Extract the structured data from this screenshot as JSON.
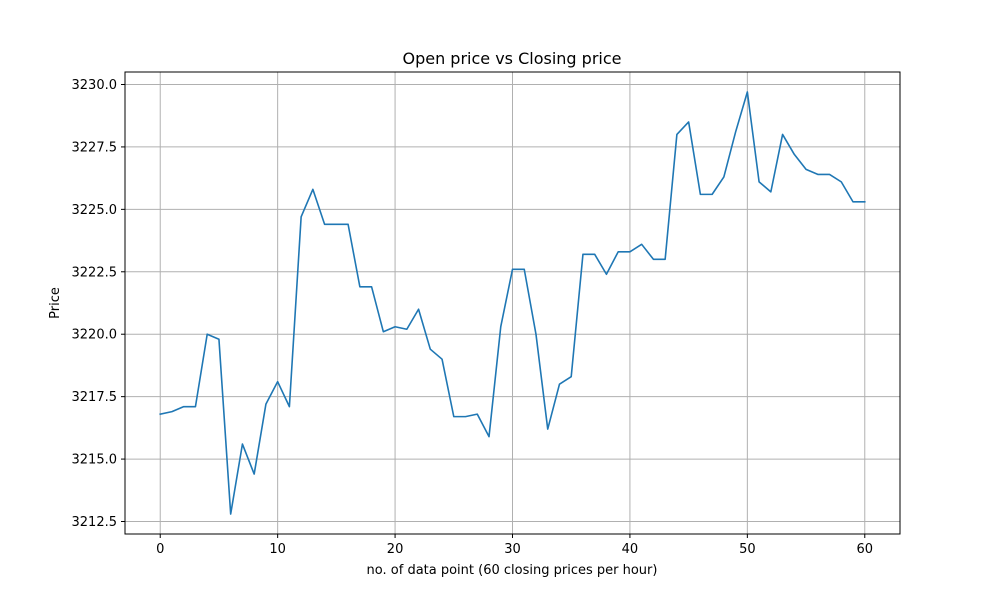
{
  "chart_data": {
    "type": "line",
    "title": "Open price vs Closing price",
    "xlabel": "no. of data point (60 closing prices per hour)",
    "ylabel": "Price",
    "xlim": [
      -3,
      63
    ],
    "ylim": [
      3212.0,
      3230.5
    ],
    "x_ticks": [
      0,
      10,
      20,
      30,
      40,
      50,
      60
    ],
    "y_ticks": [
      3212.5,
      3215.0,
      3217.5,
      3220.0,
      3222.5,
      3225.0,
      3227.5,
      3230.0
    ],
    "y_tick_labels": [
      "3212.5",
      "3215.0",
      "3217.5",
      "3220.0",
      "3222.5",
      "3225.0",
      "3227.5",
      "3230.0"
    ],
    "grid": true,
    "series": [
      {
        "color": "#1f77b4",
        "x": [
          0,
          1,
          2,
          3,
          4,
          5,
          6,
          7,
          8,
          9,
          10,
          11,
          12,
          13,
          14,
          15,
          16,
          17,
          18,
          19,
          20,
          21,
          22,
          23,
          24,
          25,
          26,
          27,
          28,
          29,
          30,
          31,
          32,
          33,
          34,
          35,
          36,
          37,
          38,
          39,
          40,
          41,
          42,
          43,
          44,
          45,
          46,
          47,
          48,
          49,
          50,
          51,
          52,
          53,
          54,
          55,
          56,
          57,
          58,
          59,
          60
        ],
        "values": [
          3216.8,
          3216.9,
          3217.1,
          3217.1,
          3220.0,
          3219.8,
          3212.8,
          3215.6,
          3214.4,
          3217.2,
          3218.1,
          3217.1,
          3224.7,
          3225.8,
          3224.4,
          3224.4,
          3224.4,
          3221.9,
          3221.9,
          3220.1,
          3220.3,
          3220.2,
          3221.0,
          3219.4,
          3219.0,
          3216.7,
          3216.7,
          3216.8,
          3215.9,
          3220.3,
          3222.6,
          3222.6,
          3220.0,
          3216.2,
          3218.0,
          3218.3,
          3223.2,
          3223.2,
          3222.4,
          3223.3,
          3223.3,
          3223.6,
          3223.0,
          3223.0,
          3228.0,
          3228.5,
          3225.6,
          3225.6,
          3226.3,
          3228.1,
          3229.7,
          3226.1,
          3225.7,
          3228.0,
          3227.2,
          3226.6,
          3226.4,
          3226.4,
          3226.1,
          3225.3,
          3225.3
        ]
      }
    ]
  }
}
